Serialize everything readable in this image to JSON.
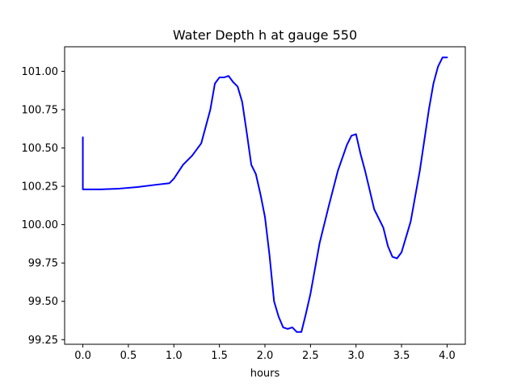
{
  "chart_data": {
    "type": "line",
    "title": "Water Depth h at gauge 550",
    "xlabel": "hours",
    "ylabel": "",
    "xlim": [
      -0.2,
      4.2
    ],
    "ylim": [
      99.22,
      101.16
    ],
    "xticks": [
      0.0,
      0.5,
      1.0,
      1.5,
      2.0,
      2.5,
      3.0,
      3.5,
      4.0
    ],
    "xtick_labels": [
      "0.0",
      "0.5",
      "1.0",
      "1.5",
      "2.0",
      "2.5",
      "3.0",
      "3.5",
      "4.0"
    ],
    "yticks": [
      99.25,
      99.5,
      99.75,
      100.0,
      100.25,
      100.5,
      100.75,
      101.0
    ],
    "ytick_labels": [
      "99.25",
      "99.50",
      "99.75",
      "100.00",
      "100.25",
      "100.50",
      "100.75",
      "101.00"
    ],
    "grid": false,
    "series": [
      {
        "color": "#0000ff",
        "x": [
          0.0,
          0.0,
          0.2,
          0.4,
          0.6,
          0.8,
          0.95,
          1.0,
          1.1,
          1.2,
          1.3,
          1.4,
          1.45,
          1.5,
          1.55,
          1.6,
          1.65,
          1.7,
          1.75,
          1.8,
          1.85,
          1.9,
          1.95,
          2.0,
          2.05,
          2.1,
          2.15,
          2.2,
          2.25,
          2.3,
          2.35,
          2.4,
          2.45,
          2.5,
          2.6,
          2.7,
          2.8,
          2.9,
          2.95,
          3.0,
          3.05,
          3.1,
          3.2,
          3.3,
          3.35,
          3.4,
          3.45,
          3.5,
          3.6,
          3.7,
          3.8,
          3.85,
          3.9,
          3.95,
          4.0
        ],
        "y": [
          100.57,
          100.23,
          100.23,
          100.235,
          100.245,
          100.26,
          100.27,
          100.3,
          100.39,
          100.45,
          100.53,
          100.75,
          100.92,
          100.96,
          100.96,
          100.97,
          100.93,
          100.9,
          100.8,
          100.6,
          100.39,
          100.33,
          100.2,
          100.05,
          99.8,
          99.5,
          99.4,
          99.33,
          99.32,
          99.33,
          99.3,
          99.3,
          99.42,
          99.55,
          99.88,
          100.12,
          100.35,
          100.52,
          100.58,
          100.59,
          100.46,
          100.35,
          100.1,
          99.98,
          99.86,
          99.79,
          99.78,
          99.82,
          100.02,
          100.35,
          100.75,
          100.92,
          101.03,
          101.09,
          101.09
        ]
      }
    ]
  }
}
